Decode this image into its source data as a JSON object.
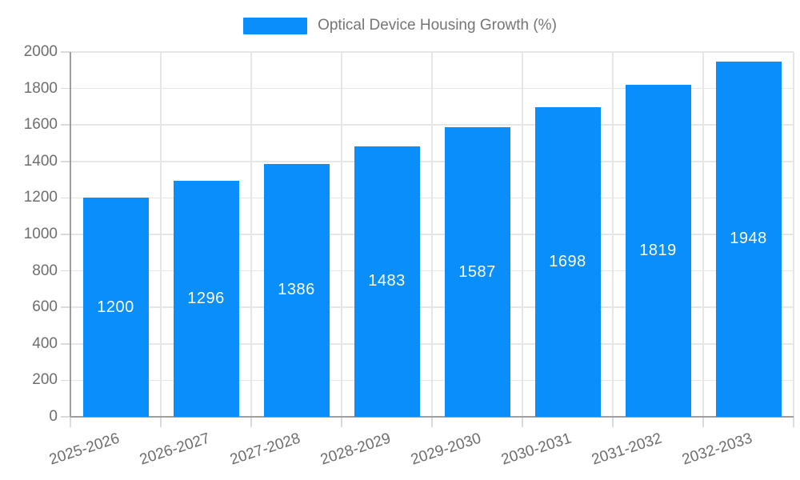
{
  "chart_data": {
    "type": "bar",
    "legend_label": "Optical Device Housing Growth (%)",
    "legend_position": "top-center",
    "categories": [
      "2025-2026",
      "2026-2027",
      "2027-2028",
      "2028-2029",
      "2029-2030",
      "2030-2031",
      "2031-2032",
      "2032-2033"
    ],
    "values": [
      1200,
      1296,
      1386,
      1483,
      1587,
      1698,
      1819,
      1948
    ],
    "value_labels_shown": true,
    "xlabel": "",
    "ylabel": "",
    "ylim": [
      0,
      2000
    ],
    "ytick_step": 200,
    "yticks": [
      0,
      200,
      400,
      600,
      800,
      1000,
      1200,
      1400,
      1600,
      1800,
      2000
    ],
    "grid": true,
    "colors": {
      "bar": "#0a8ef9",
      "value_label": "#ffffff",
      "axis_text": "#6e6e6e",
      "legend_text": "#757575",
      "grid_line": "#e6e6e6",
      "axis_line": "#9e9e9e",
      "tick_line": "#dadada",
      "background": "#ffffff"
    }
  }
}
